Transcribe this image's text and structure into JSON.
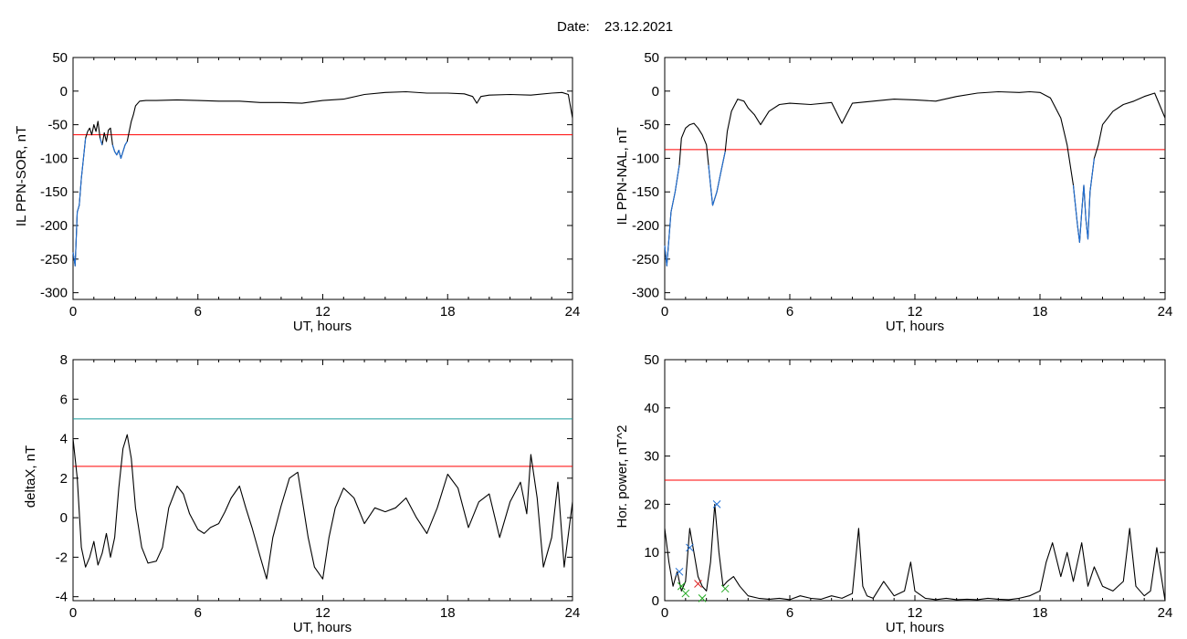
{
  "header": {
    "date_label": "Date:",
    "date_value": "23.12.2021"
  },
  "colors": {
    "trace": "#000000",
    "threshold_red": "#ff0000",
    "threshold_teal": "#1a9c9c",
    "highlight_blue": "#1f6fd6",
    "marker_green": "#22aa22",
    "marker_red": "#dd2222"
  },
  "chart_data": [
    {
      "id": "sor",
      "type": "line",
      "ylabel": "IL PPN-SOR, nT",
      "xlabel": "UT, hours",
      "xlim": [
        0,
        24
      ],
      "ylim": [
        -310,
        50
      ],
      "xticks": [
        0,
        6,
        12,
        18,
        24
      ],
      "yticks": [
        50,
        0,
        -50,
        -100,
        -150,
        -200,
        -250,
        -300
      ],
      "thresholds": [
        {
          "value": -65,
          "color": "#ff0000"
        }
      ],
      "highlight": {
        "color": "#1f6fd6",
        "below": -65,
        "xmax": 3
      },
      "series": [
        {
          "x": [
            0,
            0.1,
            0.2,
            0.3,
            0.4,
            0.5,
            0.6,
            0.7,
            0.8,
            0.9,
            1.0,
            1.1,
            1.2,
            1.3,
            1.4,
            1.5,
            1.6,
            1.7,
            1.8,
            1.9,
            2.0,
            2.1,
            2.2,
            2.3,
            2.4,
            2.5,
            2.6,
            2.7,
            2.8,
            2.9,
            3.0,
            3.2,
            3.5,
            4,
            5,
            6,
            7,
            8,
            9,
            10,
            11,
            12,
            13,
            14,
            15,
            16,
            17,
            18,
            18.8,
            19.2,
            19.4,
            19.6,
            20,
            21,
            22,
            23,
            23.5,
            23.8,
            24
          ],
          "values": [
            -240,
            -260,
            -180,
            -170,
            -130,
            -100,
            -70,
            -60,
            -55,
            -65,
            -50,
            -60,
            -45,
            -70,
            -80,
            -62,
            -75,
            -58,
            -55,
            -80,
            -90,
            -95,
            -88,
            -100,
            -90,
            -80,
            -75,
            -60,
            -45,
            -35,
            -22,
            -15,
            -14,
            -14,
            -13,
            -14,
            -15,
            -15,
            -17,
            -17,
            -18,
            -14,
            -12,
            -5,
            -2,
            -1,
            -3,
            -3,
            -4,
            -8,
            -18,
            -8,
            -6,
            -5,
            -6,
            -3,
            -2,
            -5,
            -40
          ]
        }
      ]
    },
    {
      "id": "nal",
      "type": "line",
      "ylabel": "IL PPN-NAL, nT",
      "xlabel": "UT, hours",
      "xlim": [
        0,
        24
      ],
      "ylim": [
        -310,
        50
      ],
      "xticks": [
        0,
        6,
        12,
        18,
        24
      ],
      "yticks": [
        50,
        0,
        -50,
        -100,
        -150,
        -200,
        -250,
        -300
      ],
      "thresholds": [
        {
          "value": -87,
          "color": "#ff0000"
        }
      ],
      "highlight": {
        "color": "#1f6fd6",
        "below": -87,
        "xmax": 21
      },
      "series": [
        {
          "x": [
            0,
            0.1,
            0.2,
            0.3,
            0.5,
            0.7,
            0.8,
            1.0,
            1.2,
            1.4,
            1.6,
            1.8,
            2.0,
            2.1,
            2.2,
            2.3,
            2.4,
            2.5,
            2.7,
            2.9,
            3.0,
            3.2,
            3.5,
            3.8,
            4.0,
            4.3,
            4.6,
            5,
            5.5,
            6,
            7,
            8,
            8.5,
            9,
            10,
            11,
            12,
            13,
            14,
            15,
            16,
            17,
            17.5,
            18,
            18.5,
            19.0,
            19.3,
            19.6,
            19.8,
            19.9,
            20.0,
            20.1,
            20.2,
            20.3,
            20.4,
            20.6,
            20.8,
            21.0,
            21.5,
            22,
            22.5,
            23,
            23.5,
            24
          ],
          "values": [
            -230,
            -260,
            -220,
            -180,
            -150,
            -110,
            -70,
            -55,
            -50,
            -48,
            -55,
            -65,
            -80,
            -110,
            -140,
            -170,
            -160,
            -150,
            -120,
            -90,
            -60,
            -30,
            -12,
            -15,
            -25,
            -35,
            -50,
            -30,
            -20,
            -18,
            -20,
            -17,
            -48,
            -18,
            -15,
            -12,
            -13,
            -15,
            -8,
            -3,
            -1,
            -2,
            -1,
            -2,
            -10,
            -40,
            -80,
            -140,
            -200,
            -225,
            -180,
            -140,
            -190,
            -220,
            -150,
            -100,
            -80,
            -50,
            -30,
            -20,
            -15,
            -8,
            -3,
            -40
          ]
        }
      ]
    },
    {
      "id": "deltax",
      "type": "line",
      "ylabel": "deltaX, nT",
      "xlabel": "UT, hours",
      "xlim": [
        0,
        24
      ],
      "ylim": [
        -4.2,
        8
      ],
      "xticks": [
        0,
        6,
        12,
        18,
        24
      ],
      "yticks": [
        8,
        6,
        4,
        2,
        0,
        -2,
        -4
      ],
      "thresholds": [
        {
          "value": 5.0,
          "color": "#1a9c9c"
        },
        {
          "value": 2.6,
          "color": "#ff0000"
        }
      ],
      "series": [
        {
          "x": [
            0,
            0.2,
            0.4,
            0.6,
            0.8,
            1.0,
            1.2,
            1.4,
            1.6,
            1.8,
            2.0,
            2.2,
            2.4,
            2.6,
            2.8,
            3.0,
            3.3,
            3.6,
            4.0,
            4.3,
            4.6,
            5.0,
            5.3,
            5.6,
            6.0,
            6.3,
            6.6,
            7.0,
            7.3,
            7.6,
            8.0,
            8.3,
            8.6,
            9.0,
            9.3,
            9.6,
            10.0,
            10.4,
            10.8,
            11.0,
            11.3,
            11.6,
            12.0,
            12.3,
            12.6,
            13.0,
            13.5,
            14.0,
            14.5,
            15.0,
            15.5,
            16.0,
            16.5,
            17.0,
            17.5,
            18.0,
            18.5,
            19.0,
            19.5,
            20.0,
            20.5,
            21.0,
            21.5,
            21.8,
            22.0,
            22.3,
            22.6,
            23.0,
            23.3,
            23.6,
            24.0
          ],
          "values": [
            4.0,
            2.0,
            -1.5,
            -2.5,
            -2.0,
            -1.2,
            -2.4,
            -1.8,
            -0.8,
            -2.0,
            -1.0,
            1.5,
            3.5,
            4.2,
            3.0,
            0.5,
            -1.5,
            -2.3,
            -2.2,
            -1.5,
            0.5,
            1.6,
            1.2,
            0.2,
            -0.6,
            -0.8,
            -0.5,
            -0.3,
            0.3,
            1.0,
            1.6,
            0.5,
            -0.5,
            -2.0,
            -3.1,
            -1.0,
            0.6,
            2.0,
            2.3,
            1.0,
            -1.0,
            -2.5,
            -3.1,
            -1.0,
            0.5,
            1.5,
            1.0,
            -0.3,
            0.5,
            0.3,
            0.5,
            1.0,
            0.0,
            -0.8,
            0.5,
            2.2,
            1.5,
            -0.5,
            0.8,
            1.2,
            -1.0,
            0.8,
            1.8,
            0.2,
            3.2,
            1.0,
            -2.5,
            -1.0,
            1.8,
            -2.5,
            0.8
          ]
        }
      ]
    },
    {
      "id": "power",
      "type": "line",
      "ylabel": "Hor. power, nT^2",
      "xlabel": "UT, hours",
      "xlim": [
        0,
        24
      ],
      "ylim": [
        0,
        50
      ],
      "xticks": [
        0,
        6,
        12,
        18,
        24
      ],
      "yticks": [
        50,
        40,
        30,
        20,
        10,
        0
      ],
      "thresholds": [
        {
          "value": 25,
          "color": "#ff0000"
        }
      ],
      "series": [
        {
          "x": [
            0,
            0.2,
            0.4,
            0.6,
            0.8,
            1.0,
            1.2,
            1.4,
            1.6,
            1.8,
            2.0,
            2.2,
            2.4,
            2.6,
            2.8,
            3.0,
            3.3,
            3.6,
            4.0,
            4.5,
            5.0,
            5.5,
            6.0,
            6.5,
            7.0,
            7.5,
            8.0,
            8.5,
            9.0,
            9.3,
            9.5,
            9.7,
            10.0,
            10.5,
            11.0,
            11.5,
            11.8,
            12.0,
            12.5,
            13.0,
            13.5,
            14.0,
            14.5,
            15.0,
            15.5,
            16.0,
            16.5,
            17.0,
            17.5,
            18.0,
            18.3,
            18.6,
            19.0,
            19.3,
            19.6,
            20.0,
            20.3,
            20.6,
            21.0,
            21.5,
            22.0,
            22.3,
            22.6,
            23.0,
            23.3,
            23.6,
            24.0
          ],
          "values": [
            15,
            8,
            3,
            6,
            2,
            4,
            15,
            10,
            5,
            3,
            2,
            8,
            20,
            10,
            3,
            4,
            5,
            3,
            1,
            0.5,
            0.3,
            0.5,
            0.2,
            1,
            0.5,
            0.3,
            1,
            0.5,
            1.5,
            15,
            3,
            1,
            0.5,
            4,
            1,
            2,
            8,
            2,
            0.5,
            0.2,
            0.5,
            0.2,
            0.3,
            0.2,
            0.5,
            0.3,
            0.2,
            0.5,
            1,
            2,
            8,
            12,
            5,
            10,
            4,
            12,
            3,
            7,
            3,
            2,
            4,
            15,
            3,
            1,
            2,
            11,
            0
          ]
        }
      ],
      "markers": [
        {
          "x": 0.7,
          "y": 6,
          "color": "#1f6fd6"
        },
        {
          "x": 1.2,
          "y": 11,
          "color": "#1f6fd6"
        },
        {
          "x": 2.5,
          "y": 20,
          "color": "#1f6fd6"
        },
        {
          "x": 0.8,
          "y": 3,
          "color": "#22aa22"
        },
        {
          "x": 1.0,
          "y": 1.5,
          "color": "#22aa22"
        },
        {
          "x": 1.8,
          "y": 0.5,
          "color": "#22aa22"
        },
        {
          "x": 2.9,
          "y": 2.5,
          "color": "#22aa22"
        },
        {
          "x": 1.6,
          "y": 3.5,
          "color": "#dd2222"
        }
      ]
    }
  ]
}
